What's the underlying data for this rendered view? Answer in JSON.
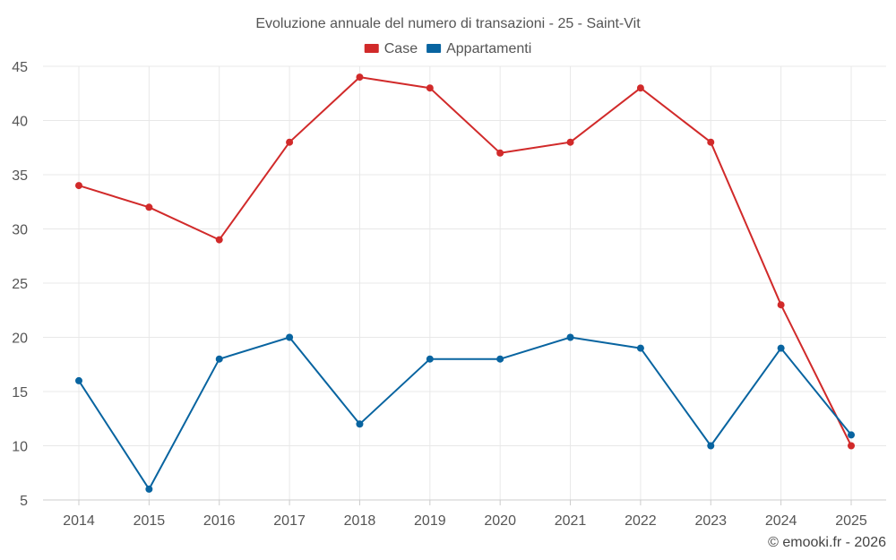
{
  "chart_data": {
    "type": "line",
    "title": "Evoluzione annuale del numero di transazioni - 25 - Saint-Vit",
    "categories": [
      "2014",
      "2015",
      "2016",
      "2017",
      "2018",
      "2019",
      "2020",
      "2021",
      "2022",
      "2023",
      "2024",
      "2025"
    ],
    "series": [
      {
        "name": "Case",
        "color": "#d12a2a",
        "values": [
          34,
          32,
          29,
          38,
          44,
          43,
          37,
          38,
          43,
          38,
          23,
          10
        ]
      },
      {
        "name": "Appartamenti",
        "color": "#0864a0",
        "values": [
          16,
          6,
          18,
          20,
          12,
          18,
          18,
          20,
          19,
          10,
          19,
          11
        ]
      }
    ],
    "yticks": [
      5,
      10,
      15,
      20,
      25,
      30,
      35,
      40,
      45
    ],
    "ylim": [
      5,
      45
    ],
    "xlabel": "",
    "ylabel": "",
    "grid": true,
    "legend": "top-center"
  },
  "credit": "© emooki.fr - 2026"
}
